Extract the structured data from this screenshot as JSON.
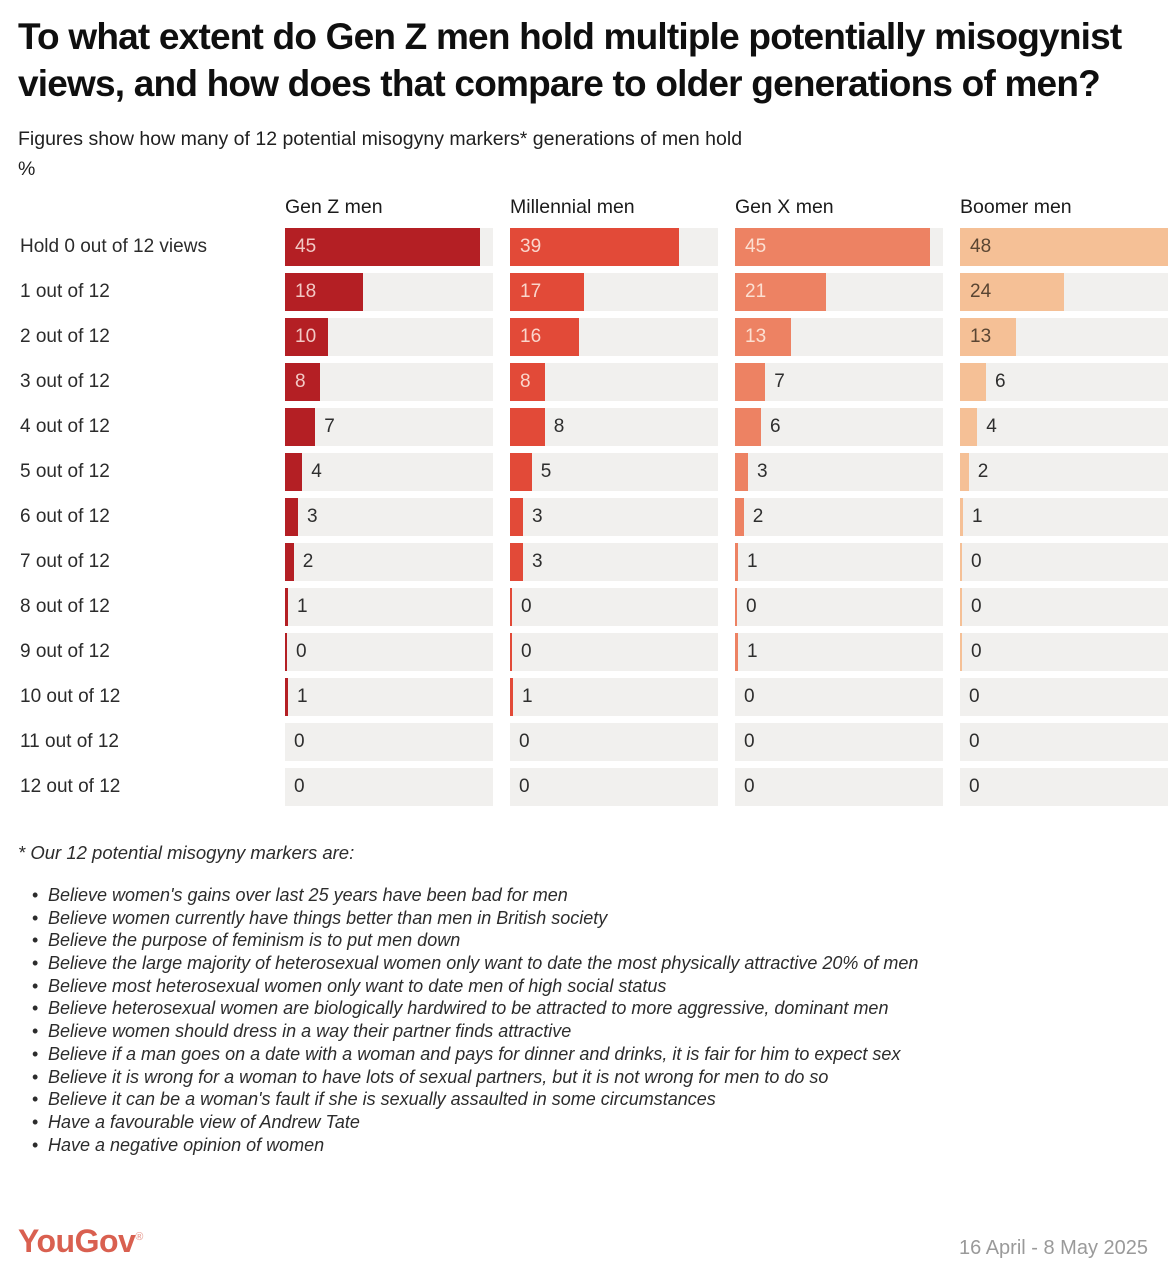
{
  "header": {
    "title": "To what extent do Gen Z men hold multiple potentially misogynist views, and how does that compare to older generations of men?",
    "subtitle": "Figures show how many of 12 potential misogyny markers* generations of men hold",
    "unit": "%"
  },
  "chart_data": {
    "type": "bar",
    "orientation": "horizontal",
    "value_unit": "%",
    "axis_max": 48,
    "track_color": "#f1f0ee",
    "outside_label_color": "#2e2e2e",
    "categories": [
      "Hold 0 out of 12 views",
      "1 out of 12",
      "2 out of 12",
      "3 out of 12",
      "4 out of 12",
      "5 out of 12",
      "6 out of 12",
      "7 out of 12",
      "8 out of 12",
      "9 out of 12",
      "10 out of 12",
      "11 out of 12",
      "12 out of 12"
    ],
    "series": [
      {
        "name": "Gen Z men",
        "color": "#b41f24",
        "inside_label_color": "#f2c9c5",
        "values": [
          45,
          18,
          10,
          8,
          7,
          4,
          3,
          2,
          1,
          0,
          1,
          0,
          0
        ],
        "label_inside_rows": [
          0,
          1,
          2,
          3
        ],
        "zero_tick_rows": [
          9
        ]
      },
      {
        "name": "Millennial men",
        "color": "#e24a38",
        "inside_label_color": "#fad6cc",
        "values": [
          39,
          17,
          16,
          8,
          8,
          5,
          3,
          3,
          0,
          0,
          1,
          0,
          0
        ],
        "label_inside_rows": [
          0,
          1,
          2,
          3
        ],
        "zero_tick_rows": [
          8,
          9
        ]
      },
      {
        "name": "Gen X men",
        "color": "#ed8263",
        "inside_label_color": "#fce0d2",
        "values": [
          45,
          21,
          13,
          7,
          6,
          3,
          2,
          1,
          0,
          1,
          0,
          0,
          0
        ],
        "label_inside_rows": [
          0,
          1,
          2
        ],
        "zero_tick_rows": [
          8
        ]
      },
      {
        "name": "Boomer men",
        "color": "#f5c096",
        "inside_label_color": "#5a4532",
        "values": [
          48,
          24,
          13,
          6,
          4,
          2,
          1,
          0,
          0,
          0,
          0,
          0,
          0
        ],
        "label_inside_rows": [
          0,
          1,
          2
        ],
        "zero_tick_rows": [
          7,
          8,
          9
        ]
      }
    ]
  },
  "footnote": {
    "heading": "* Our 12 potential misogyny markers are:",
    "bullet_char": "•",
    "bullets": [
      "Believe women's gains over last 25 years have been bad for men",
      "Believe women currently have things better than men in British society",
      "Believe the purpose of feminism is to put men down",
      "Believe the large majority of heterosexual women only want to date the most physically attractive 20% of men",
      "Believe most heterosexual women only want to date men of high social status",
      "Believe heterosexual women are biologically hardwired to be attracted to more aggressive, dominant men",
      "Believe women should dress in a way their partner finds attractive",
      "Believe if a man goes on a date with a woman and pays for dinner and drinks, it is fair for him to expect sex",
      "Believe it is wrong for a woman to have lots of sexual partners, but it is not wrong for men to do so",
      "Believe it can be a woman's fault if she is sexually assaulted in some circumstances",
      "Have a favourable view of Andrew Tate",
      "Have a negative opinion of women"
    ]
  },
  "footer": {
    "logo_text": "YouGov",
    "registered_mark": "®",
    "logo_color": "#d96050",
    "date_range": "16 April - 8 May 2025"
  }
}
